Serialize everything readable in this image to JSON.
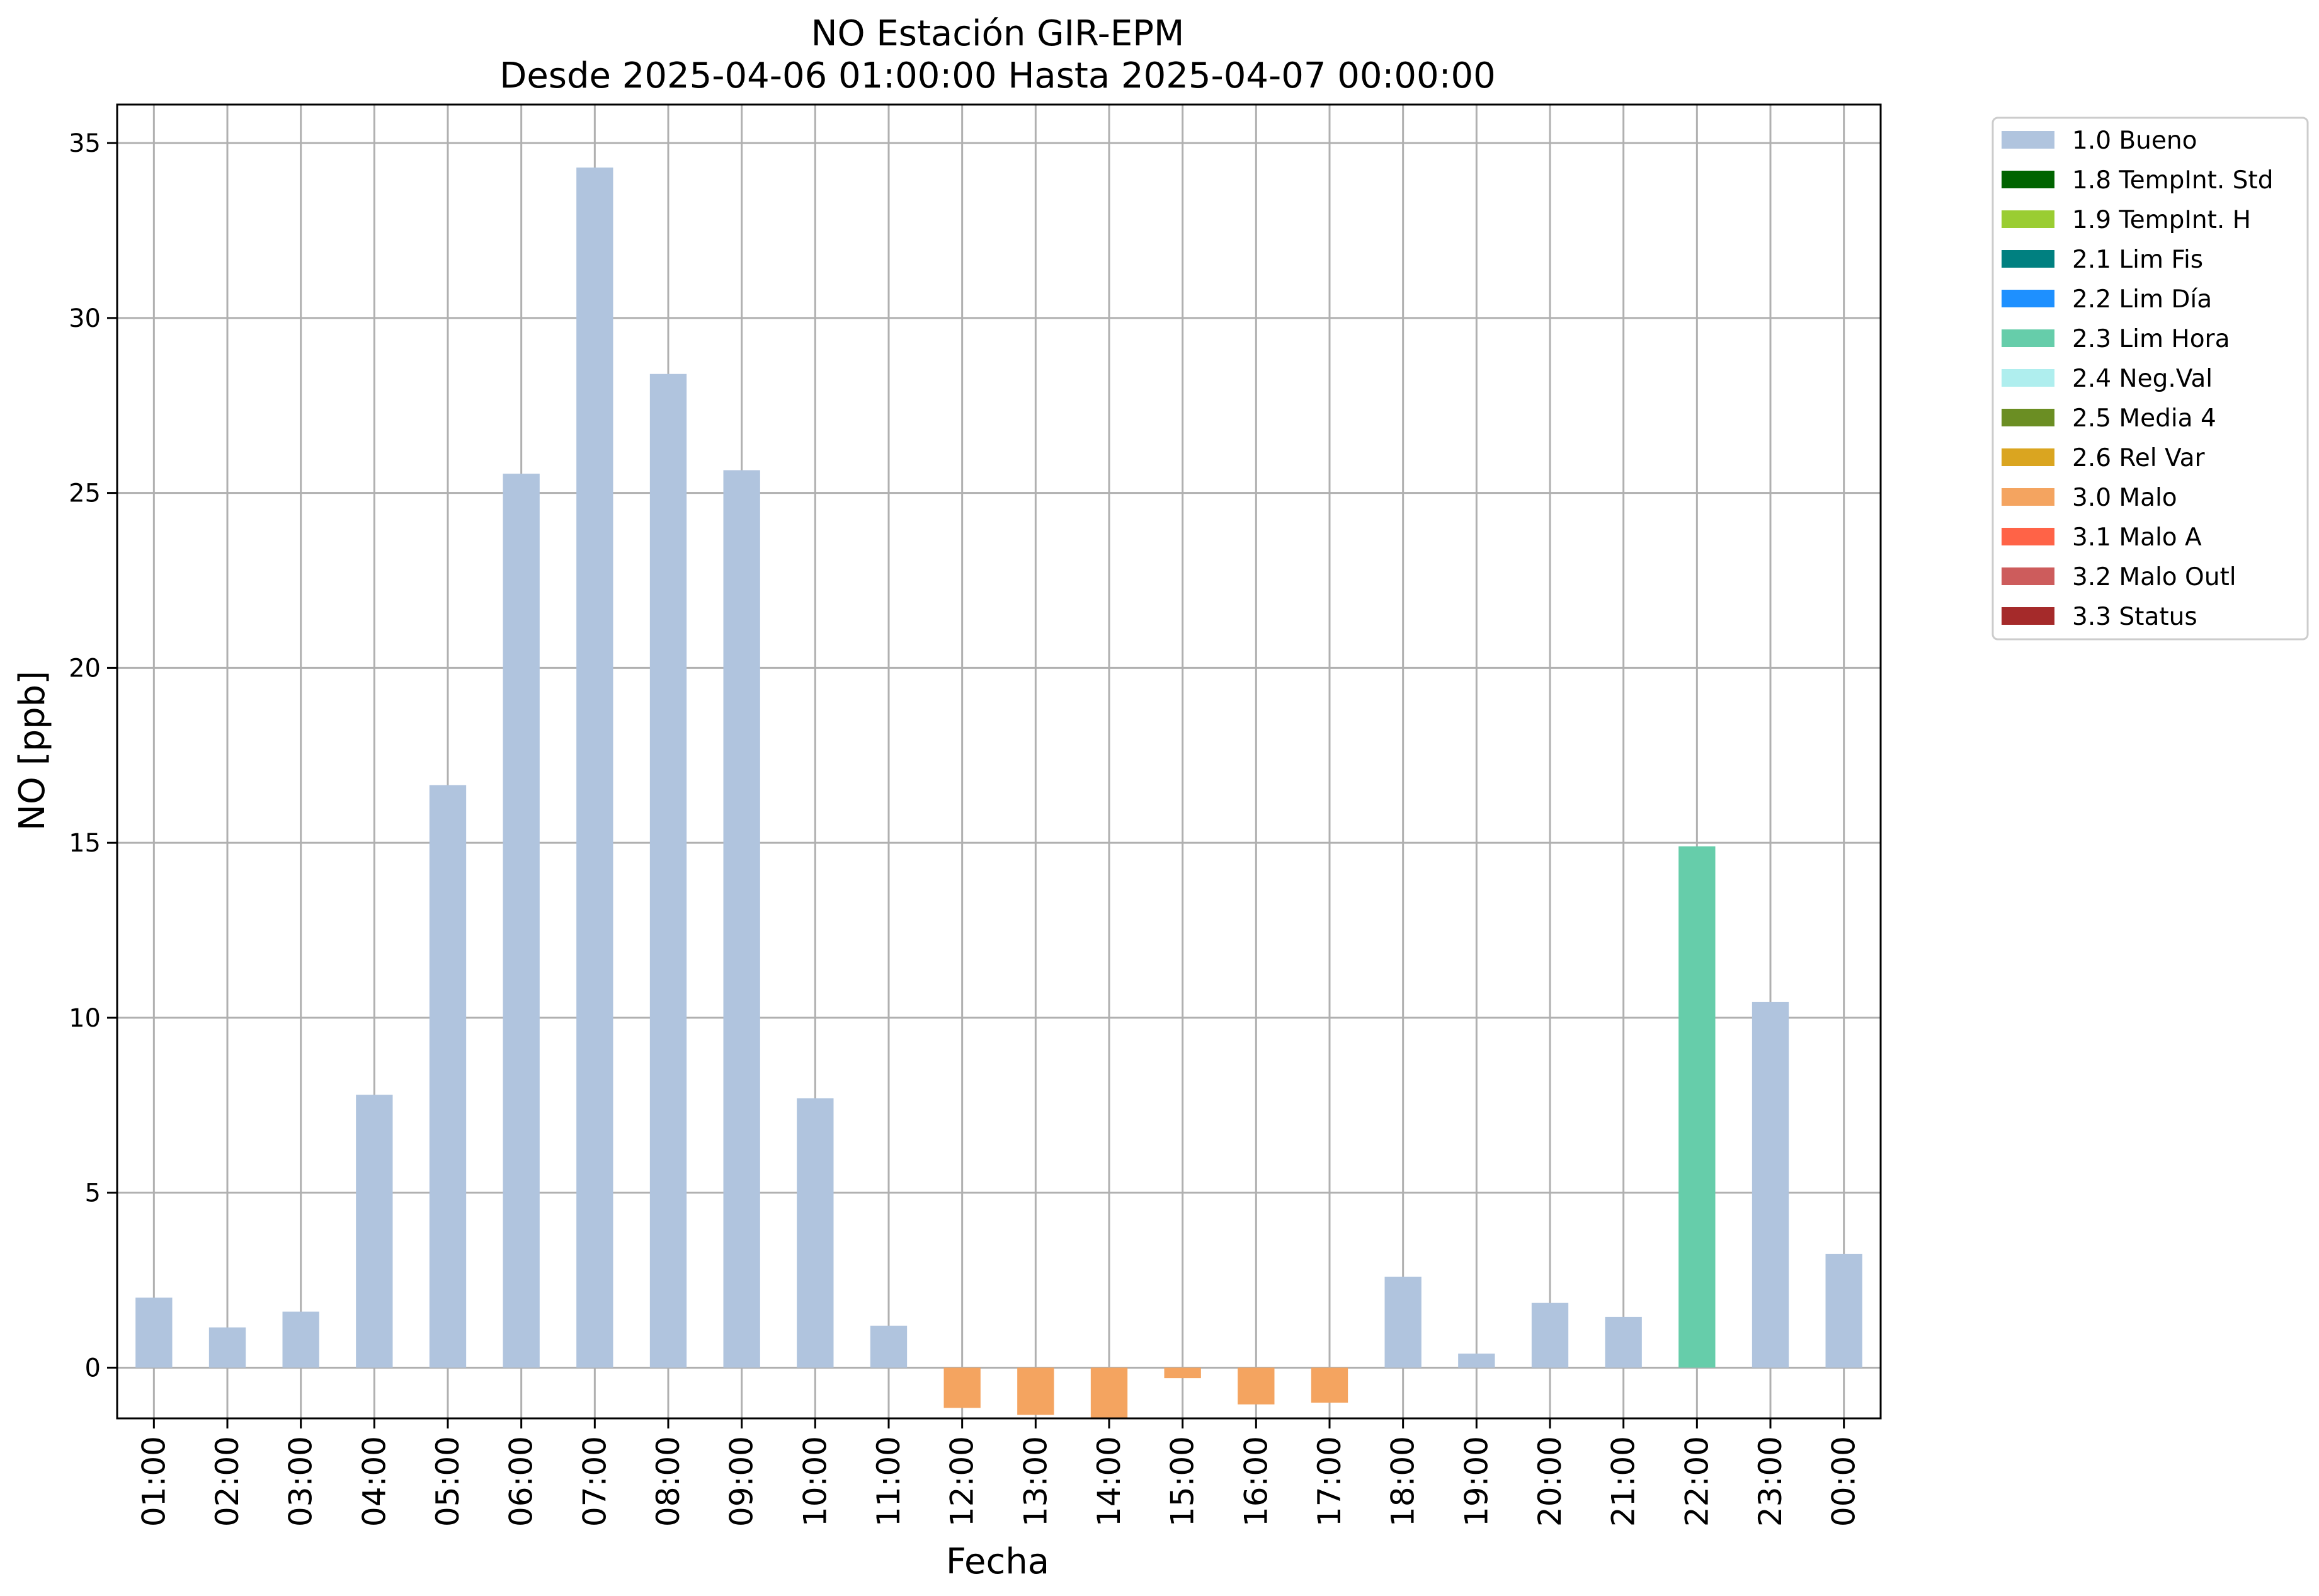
{
  "chart_data": {
    "type": "bar",
    "title": "NO Estación GIR-EPM",
    "subtitle": "Desde 2025-04-06 01:00:00 Hasta 2025-04-07 00:00:00",
    "xlabel": "Fecha",
    "ylabel": "NO [ppb]",
    "ylim": [
      -1.45,
      36.1
    ],
    "yticks": [
      0,
      5,
      10,
      15,
      20,
      25,
      30,
      35
    ],
    "grid": true,
    "legend_position": "outside-right",
    "categories": [
      "01:00",
      "02:00",
      "03:00",
      "04:00",
      "05:00",
      "06:00",
      "07:00",
      "08:00",
      "09:00",
      "10:00",
      "11:00",
      "12:00",
      "13:00",
      "14:00",
      "15:00",
      "16:00",
      "17:00",
      "18:00",
      "19:00",
      "20:00",
      "21:00",
      "22:00",
      "23:00",
      "00:00"
    ],
    "values": [
      2.0,
      1.15,
      1.6,
      7.8,
      16.65,
      25.55,
      34.3,
      28.4,
      25.65,
      7.7,
      1.2,
      -1.15,
      -1.35,
      -1.45,
      -0.3,
      -1.05,
      -1.0,
      2.6,
      0.4,
      1.85,
      1.45,
      14.9,
      10.45,
      3.25
    ],
    "flags": [
      "1.0 Bueno",
      "1.0 Bueno",
      "1.0 Bueno",
      "1.0 Bueno",
      "1.0 Bueno",
      "1.0 Bueno",
      "1.0 Bueno",
      "1.0 Bueno",
      "1.0 Bueno",
      "1.0 Bueno",
      "1.0 Bueno",
      "3.0 Malo",
      "3.0 Malo",
      "3.0 Malo",
      "3.0 Malo",
      "3.0 Malo",
      "3.0 Malo",
      "1.0 Bueno",
      "1.0 Bueno",
      "1.0 Bueno",
      "1.0 Bueno",
      "2.3 Lim Hora",
      "1.0 Bueno",
      "1.0 Bueno"
    ],
    "legend": [
      {
        "label": "1.0 Bueno",
        "color": "#b0c4de"
      },
      {
        "label": "1.8 TempInt. Std",
        "color": "#006400"
      },
      {
        "label": "1.9 TempInt. H",
        "color": "#9acd32"
      },
      {
        "label": "2.1 Lim Fis",
        "color": "#008080"
      },
      {
        "label": "2.2 Lim Día",
        "color": "#1e90ff"
      },
      {
        "label": "2.3 Lim Hora",
        "color": "#66cdaa"
      },
      {
        "label": "2.4 Neg.Val",
        "color": "#afeeee"
      },
      {
        "label": "2.5 Media 4",
        "color": "#6b8e23"
      },
      {
        "label": "2.6 Rel Var",
        "color": "#daa520"
      },
      {
        "label": "3.0 Malo",
        "color": "#f4a460"
      },
      {
        "label": "3.1 Malo A",
        "color": "#ff6347"
      },
      {
        "label": "3.2 Malo Outl",
        "color": "#cd5c5c"
      },
      {
        "label": "3.3 Status",
        "color": "#a52a2a"
      }
    ]
  }
}
